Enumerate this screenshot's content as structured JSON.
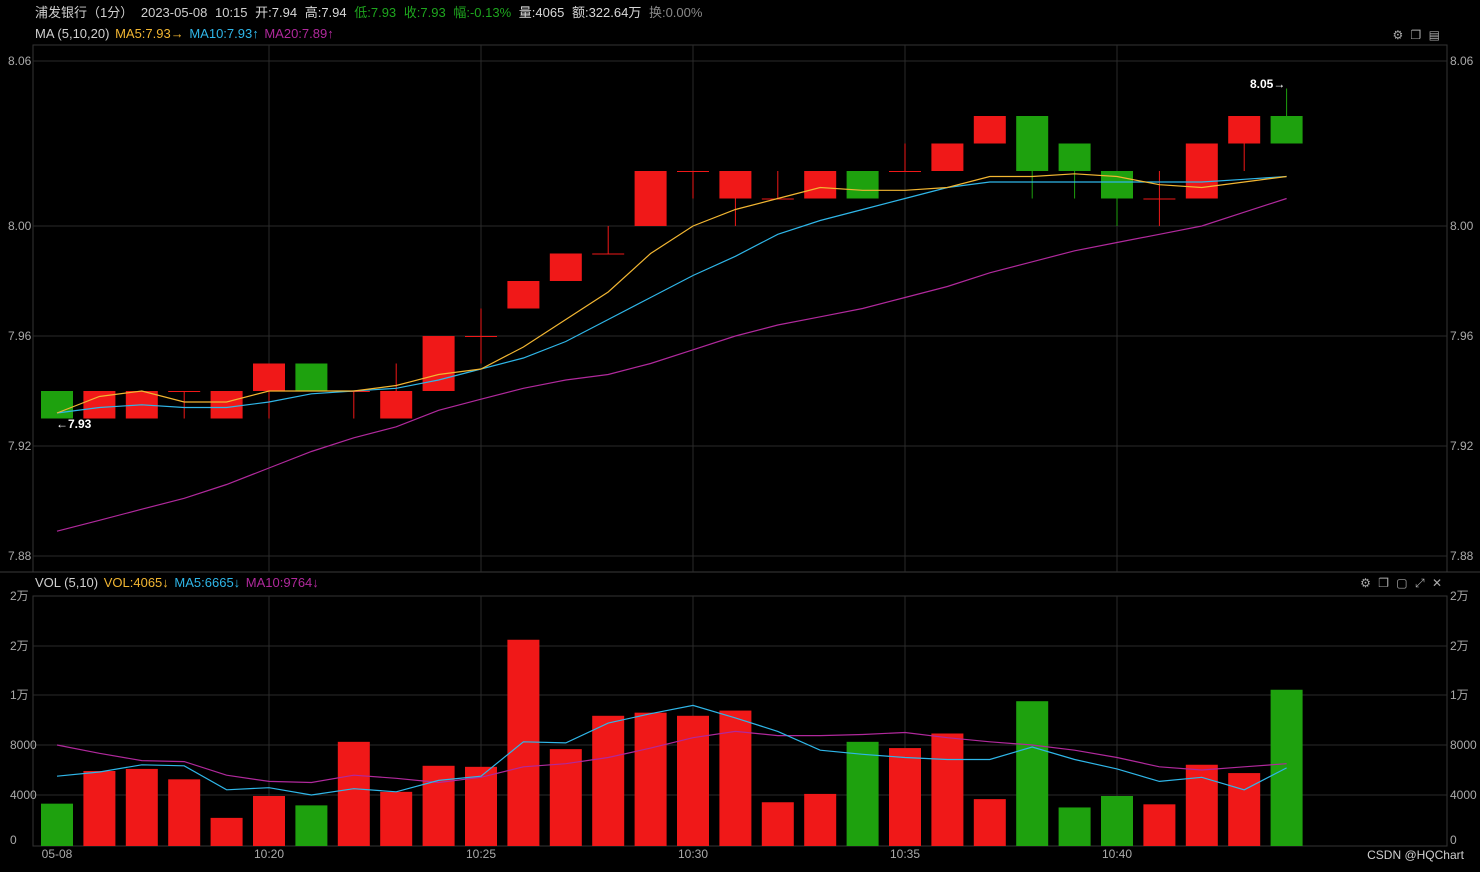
{
  "header": {
    "stock": "浦发银行（1分）",
    "date": "2023-05-08",
    "time": "10:15",
    "open": "开:7.94",
    "high": "高:7.94",
    "low": "低:7.93",
    "close": "收:7.93",
    "change": "幅:-0.13%",
    "volume": "量:4065",
    "amount": "额:322.64万",
    "turnover": "换:0.00%"
  },
  "ma_legend": {
    "label": "MA (5,10,20)",
    "ma5": "MA5:7.93→",
    "ma10": "MA10:7.93↑",
    "ma20": "MA20:7.89↑"
  },
  "vol_legend": {
    "label": "VOL (5,10)",
    "vol": "VOL:4065↓",
    "ma5": "MA5:6665↓",
    "ma10": "MA10:9764↓"
  },
  "toolbar": {
    "main_icons": [
      "settings-icon",
      "copy-icon",
      "export-icon"
    ],
    "vol_icons": [
      "settings-icon",
      "copy-icon",
      "window-icon",
      "expand-icon",
      "close-icon"
    ]
  },
  "colors": {
    "up": "#f01818",
    "down": "#1ea10e",
    "ma5": "#f2b632",
    "ma10": "#2fb6e8",
    "ma20": "#b0299c",
    "grid": "#2a2a2a"
  },
  "watermark": "CSDN @HQChart",
  "annotations": {
    "low_mark": "←7.93",
    "high_mark": "8.05→"
  },
  "chart_data": {
    "type": "candlestick",
    "price_axis_labels": [
      "8.06",
      "8.00",
      "7.96",
      "7.92",
      "7.88"
    ],
    "volume_axis_labels": [
      "2万",
      "2万",
      "1万",
      "8000",
      "4000",
      "0"
    ],
    "x_tick_labels": [
      "05-08",
      "10:20",
      "10:25",
      "10:30",
      "10:35",
      "10:40"
    ],
    "ylim": [
      7.88,
      8.06
    ],
    "vol_ylim": [
      0,
      24000
    ],
    "candles": [
      {
        "o": 7.94,
        "h": 7.94,
        "l": 7.93,
        "c": 7.93
      },
      {
        "o": 7.93,
        "h": 7.94,
        "l": 7.93,
        "c": 7.94
      },
      {
        "o": 7.93,
        "h": 7.94,
        "l": 7.93,
        "c": 7.94
      },
      {
        "o": 7.94,
        "h": 7.94,
        "l": 7.93,
        "c": 7.94
      },
      {
        "o": 7.93,
        "h": 7.94,
        "l": 7.93,
        "c": 7.94
      },
      {
        "o": 7.94,
        "h": 7.95,
        "l": 7.93,
        "c": 7.95
      },
      {
        "o": 7.95,
        "h": 7.95,
        "l": 7.94,
        "c": 7.94
      },
      {
        "o": 7.94,
        "h": 7.94,
        "l": 7.93,
        "c": 7.94
      },
      {
        "o": 7.93,
        "h": 7.95,
        "l": 7.93,
        "c": 7.94
      },
      {
        "o": 7.94,
        "h": 7.96,
        "l": 7.94,
        "c": 7.96
      },
      {
        "o": 7.96,
        "h": 7.97,
        "l": 7.95,
        "c": 7.96
      },
      {
        "o": 7.97,
        "h": 7.98,
        "l": 7.97,
        "c": 7.98
      },
      {
        "o": 7.98,
        "h": 7.99,
        "l": 7.98,
        "c": 7.99
      },
      {
        "o": 7.99,
        "h": 8.0,
        "l": 7.99,
        "c": 7.99
      },
      {
        "o": 8.0,
        "h": 8.02,
        "l": 8.0,
        "c": 8.02
      },
      {
        "o": 8.02,
        "h": 8.02,
        "l": 8.01,
        "c": 8.02
      },
      {
        "o": 8.01,
        "h": 8.02,
        "l": 8.0,
        "c": 8.02
      },
      {
        "o": 8.01,
        "h": 8.02,
        "l": 8.01,
        "c": 8.01
      },
      {
        "o": 8.01,
        "h": 8.02,
        "l": 8.01,
        "c": 8.02
      },
      {
        "o": 8.02,
        "h": 8.02,
        "l": 8.01,
        "c": 8.01
      },
      {
        "o": 8.02,
        "h": 8.03,
        "l": 8.02,
        "c": 8.02
      },
      {
        "o": 8.02,
        "h": 8.03,
        "l": 8.02,
        "c": 8.03
      },
      {
        "o": 8.03,
        "h": 8.04,
        "l": 8.03,
        "c": 8.04
      },
      {
        "o": 8.04,
        "h": 8.04,
        "l": 8.01,
        "c": 8.02
      },
      {
        "o": 8.03,
        "h": 8.03,
        "l": 8.01,
        "c": 8.02
      },
      {
        "o": 8.02,
        "h": 8.02,
        "l": 8.0,
        "c": 8.01
      },
      {
        "o": 8.01,
        "h": 8.02,
        "l": 8.0,
        "c": 8.01
      },
      {
        "o": 8.01,
        "h": 8.03,
        "l": 8.01,
        "c": 8.03
      },
      {
        "o": 8.03,
        "h": 8.04,
        "l": 8.02,
        "c": 8.04
      },
      {
        "o": 8.04,
        "h": 8.05,
        "l": 8.03,
        "c": 8.03
      }
    ],
    "volume": [
      4065,
      7200,
      7400,
      6400,
      2700,
      4800,
      3900,
      10000,
      5200,
      7700,
      7600,
      19800,
      9300,
      12500,
      12800,
      12500,
      13000,
      4200,
      5000,
      10000,
      9400,
      10800,
      4500,
      13900,
      3700,
      4800,
      4000,
      7800,
      7000,
      15000
    ],
    "volume_direction": [
      "down",
      "up",
      "up",
      "up",
      "up",
      "up",
      "down",
      "up",
      "up",
      "up",
      "up",
      "up",
      "up",
      "up",
      "up",
      "up",
      "up",
      "up",
      "up",
      "down",
      "up",
      "up",
      "up",
      "down",
      "down",
      "down",
      "up",
      "up",
      "up",
      "down"
    ],
    "ma5": [
      7.932,
      7.938,
      7.94,
      7.936,
      7.936,
      7.94,
      7.94,
      7.94,
      7.942,
      7.946,
      7.948,
      7.956,
      7.966,
      7.976,
      7.99,
      8.0,
      8.006,
      8.01,
      8.014,
      8.013,
      8.013,
      8.014,
      8.018,
      8.018,
      8.019,
      8.018,
      8.015,
      8.014,
      8.016,
      8.018
    ],
    "ma10": [
      7.932,
      7.934,
      7.935,
      7.934,
      7.934,
      7.936,
      7.939,
      7.94,
      7.941,
      7.944,
      7.948,
      7.952,
      7.958,
      7.966,
      7.974,
      7.982,
      7.989,
      7.997,
      8.002,
      8.006,
      8.01,
      8.014,
      8.016,
      8.016,
      8.016,
      8.016,
      8.016,
      8.016,
      8.017,
      8.018
    ],
    "ma20": [
      7.889,
      7.893,
      7.897,
      7.901,
      7.906,
      7.912,
      7.918,
      7.923,
      7.927,
      7.933,
      7.937,
      7.941,
      7.944,
      7.946,
      7.95,
      7.955,
      7.96,
      7.964,
      7.967,
      7.97,
      7.974,
      7.978,
      7.983,
      7.987,
      7.991,
      7.994,
      7.997,
      8.0,
      8.005,
      8.01
    ],
    "vol_ma5": [
      6700,
      7100,
      7800,
      7700,
      5400,
      5600,
      4900,
      5500,
      5200,
      6300,
      6700,
      10000,
      9900,
      11800,
      12700,
      13500,
      12300,
      11000,
      9200,
      8800,
      8500,
      8300,
      8300,
      9500,
      8300,
      7400,
      6200,
      6600,
      5400,
      7500
    ],
    "vol_ma10": [
      9700,
      8900,
      8200,
      8100,
      6800,
      6200,
      6100,
      6800,
      6500,
      6100,
      6600,
      7600,
      7900,
      8500,
      9400,
      10400,
      11000,
      10600,
      10600,
      10700,
      10900,
      10400,
      10000,
      9700,
      9200,
      8500,
      7600,
      7300,
      7600,
      7900
    ]
  }
}
